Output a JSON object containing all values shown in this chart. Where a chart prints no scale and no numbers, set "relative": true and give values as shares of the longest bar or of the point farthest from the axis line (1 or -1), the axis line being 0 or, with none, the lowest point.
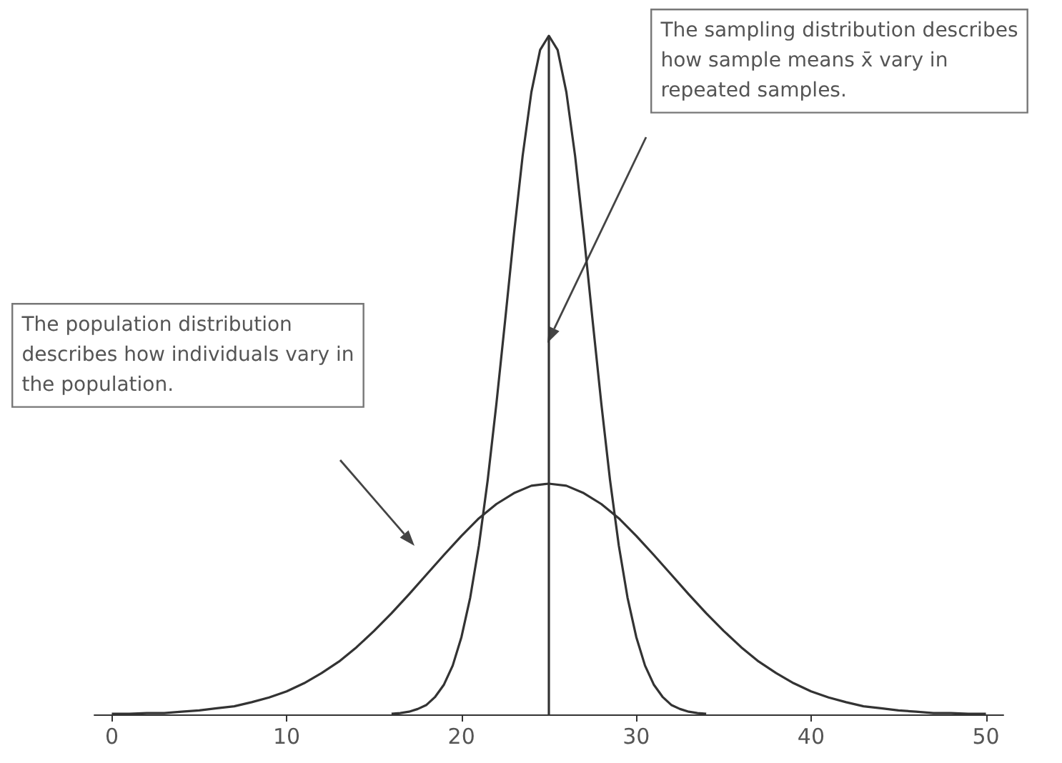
{
  "chart_data": {
    "type": "line",
    "relative": true,
    "xlim": [
      -1,
      51
    ],
    "xticks": [
      0,
      10,
      20,
      30,
      40,
      50
    ],
    "grid": false,
    "series": [
      {
        "color": "#333333",
        "x": [
          0,
          1,
          2,
          3,
          4,
          5,
          6,
          7,
          8,
          9,
          10,
          11,
          12,
          13,
          14,
          15,
          16,
          17,
          18,
          19,
          20,
          21,
          22,
          23,
          24,
          25,
          26,
          27,
          28,
          29,
          30,
          31,
          32,
          33,
          34,
          35,
          36,
          37,
          38,
          39,
          40,
          41,
          42,
          43,
          44,
          45,
          46,
          47,
          48,
          49,
          50
        ],
        "values": [
          0.001,
          0.001,
          0.002,
          0.002,
          0.004,
          0.006,
          0.009,
          0.012,
          0.018,
          0.025,
          0.034,
          0.046,
          0.061,
          0.078,
          0.099,
          0.123,
          0.149,
          0.177,
          0.206,
          0.235,
          0.263,
          0.289,
          0.31,
          0.326,
          0.337,
          0.34,
          0.337,
          0.326,
          0.31,
          0.289,
          0.263,
          0.235,
          0.206,
          0.177,
          0.149,
          0.123,
          0.099,
          0.078,
          0.061,
          0.046,
          0.034,
          0.025,
          0.018,
          0.012,
          0.009,
          0.006,
          0.004,
          0.002,
          0.002,
          0.001,
          0.001
        ]
      },
      {
        "color": "#333333",
        "x": [
          16,
          16.5,
          17,
          17.5,
          18,
          18.5,
          19,
          19.5,
          20,
          20.5,
          21,
          21.5,
          22,
          22.5,
          23,
          23.5,
          24,
          24.5,
          25,
          25.5,
          26,
          26.5,
          27,
          27.5,
          28,
          28.5,
          29,
          29.5,
          30,
          30.5,
          31,
          31.5,
          32,
          32.5,
          33,
          33.5,
          34
        ],
        "values": [
          0.001,
          0.002,
          0.004,
          0.008,
          0.014,
          0.026,
          0.044,
          0.072,
          0.114,
          0.172,
          0.249,
          0.345,
          0.458,
          0.581,
          0.707,
          0.823,
          0.917,
          0.979,
          1,
          0.979,
          0.917,
          0.823,
          0.707,
          0.581,
          0.458,
          0.345,
          0.249,
          0.172,
          0.114,
          0.072,
          0.044,
          0.026,
          0.014,
          0.008,
          0.004,
          0.002,
          0.001
        ]
      }
    ],
    "ref_lines": [
      {
        "axis": "x",
        "value": 25,
        "color": "#333333"
      }
    ],
    "annotations": [
      "The sampling distribution describes how sample means x̄ vary in repeated samples.",
      "The population distribution describes how individuals vary in the population."
    ]
  }
}
